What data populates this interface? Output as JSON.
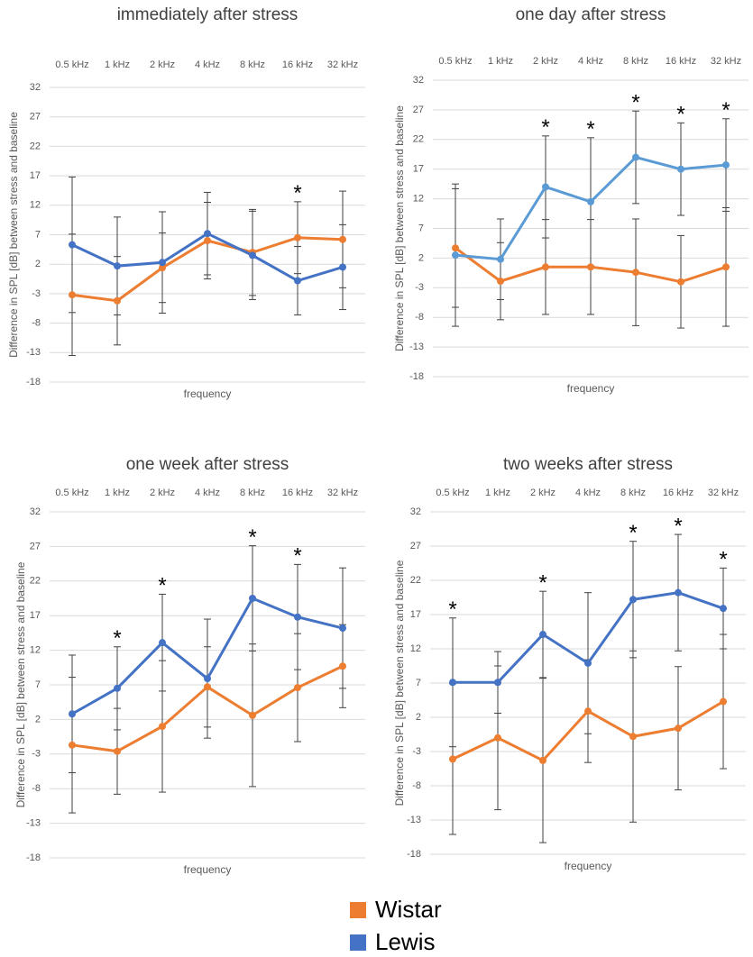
{
  "chart_data": [
    {
      "type": "line",
      "title": "immediately after stress",
      "categories": [
        "0.5 kHz",
        "1 kHz",
        "2 kHz",
        "4 kHz",
        "8 kHz",
        "16 kHz",
        "32 kHz"
      ],
      "x_label": "frequency",
      "y_label": "Difference in SPL [dB] between stress and baseline",
      "ylim": [
        -18,
        32
      ],
      "yticks": [
        -18,
        -13,
        -8,
        -3,
        2,
        7,
        12,
        17,
        22,
        27,
        32
      ],
      "grid": true,
      "series": [
        {
          "color": "#ed7d31",
          "values": [
            -3.2,
            -4.2,
            1.4,
            6.0,
            4.0,
            6.5,
            6.2
          ],
          "errors": [
            10.3,
            7.5,
            5.9,
            6.5,
            7.3,
            6.1,
            8.2
          ]
        },
        {
          "color": "#4472c4",
          "values": [
            5.3,
            1.7,
            2.3,
            7.2,
            3.5,
            -0.8,
            1.5
          ],
          "errors": [
            11.5,
            8.3,
            8.6,
            7.0,
            7.5,
            5.8,
            7.2
          ]
        }
      ],
      "annotations": [
        {
          "text": "*",
          "x": "16 kHz"
        }
      ]
    },
    {
      "type": "line",
      "title": "one day after stress",
      "categories": [
        "0.5 kHz",
        "1 kHz",
        "2 kHz",
        "4 kHz",
        "8 kHz",
        "16 kHz",
        "32 kHz"
      ],
      "x_label": "frequency",
      "y_label": "Difference in SPL [dB] between stress and baseline",
      "ylim": [
        -18,
        32
      ],
      "yticks": [
        -18,
        -13,
        -8,
        -3,
        2,
        7,
        12,
        17,
        22,
        27,
        32
      ],
      "grid": true,
      "series": [
        {
          "color": "#ed7d31",
          "values": [
            3.7,
            -1.9,
            0.5,
            0.5,
            -0.4,
            -2.0,
            0.5
          ],
          "errors": [
            10.0,
            6.5,
            8.0,
            8.0,
            9.0,
            7.8,
            10.0
          ]
        },
        {
          "color": "#5b9bd5",
          "values": [
            2.5,
            1.8,
            14.0,
            11.5,
            19.0,
            17.0,
            17.7
          ],
          "errors": [
            12.0,
            6.8,
            8.6,
            10.8,
            7.8,
            7.8,
            7.8
          ]
        }
      ],
      "annotations": [
        {
          "text": "*",
          "x": "2 kHz"
        },
        {
          "text": "*",
          "x": "4 kHz"
        },
        {
          "text": "*",
          "x": "8 kHz"
        },
        {
          "text": "*",
          "x": "16 kHz"
        },
        {
          "text": "*",
          "x": "32 kHz"
        }
      ]
    },
    {
      "type": "line",
      "title": "one week after stress",
      "categories": [
        "0.5 kHz",
        "1 kHz",
        "2 kHz",
        "4 kHz",
        "8 kHz",
        "16 kHz",
        "32 kHz"
      ],
      "x_label": "frequency",
      "y_label": "Difference in SPL [dB] between stress and baseline",
      "ylim": [
        -18,
        32
      ],
      "yticks": [
        -18,
        -13,
        -8,
        -3,
        2,
        7,
        12,
        17,
        22,
        27,
        32
      ],
      "grid": true,
      "series": [
        {
          "color": "#ed7d31",
          "values": [
            -1.7,
            -2.6,
            1.0,
            6.7,
            2.6,
            6.6,
            9.7
          ],
          "errors": [
            9.8,
            6.2,
            9.5,
            5.8,
            10.3,
            7.8,
            6.0
          ]
        },
        {
          "color": "#4472c4",
          "values": [
            2.8,
            6.5,
            13.1,
            7.9,
            19.5,
            16.8,
            15.2
          ],
          "errors": [
            8.5,
            6.0,
            7.0,
            8.6,
            7.6,
            7.6,
            8.7
          ]
        }
      ],
      "annotations": [
        {
          "text": "*",
          "x": "1 kHz"
        },
        {
          "text": "*",
          "x": "2 kHz"
        },
        {
          "text": "*",
          "x": "8 kHz"
        },
        {
          "text": "*",
          "x": "16 kHz"
        }
      ]
    },
    {
      "type": "line",
      "title": "two weeks after stress",
      "categories": [
        "0.5 kHz",
        "1 kHz",
        "2 kHz",
        "4 kHz",
        "8 kHz",
        "16 kHz",
        "32 kHz"
      ],
      "x_label": "frequency",
      "y_label": "Difference in SPL [dB] between stress and baseline",
      "ylim": [
        -18,
        32
      ],
      "yticks": [
        -18,
        -13,
        -8,
        -3,
        2,
        7,
        12,
        17,
        22,
        27,
        32
      ],
      "grid": true,
      "series": [
        {
          "color": "#ed7d31",
          "values": [
            -4.1,
            -1.0,
            -4.3,
            2.9,
            -0.8,
            0.4,
            4.3
          ],
          "errors": [
            11.0,
            10.5,
            12.0,
            7.5,
            12.5,
            9.0,
            9.8
          ]
        },
        {
          "color": "#4472c4",
          "values": [
            7.1,
            7.1,
            14.1,
            9.9,
            19.2,
            20.2,
            17.9
          ],
          "errors": [
            9.4,
            4.5,
            6.3,
            10.3,
            8.5,
            8.5,
            5.9
          ]
        }
      ],
      "annotations": [
        {
          "text": "*",
          "x": "0.5 kHz"
        },
        {
          "text": "*",
          "x": "2 kHz"
        },
        {
          "text": "*",
          "x": "8 kHz"
        },
        {
          "text": "*",
          "x": "16 kHz"
        },
        {
          "text": "*",
          "x": "32 kHz"
        }
      ]
    }
  ],
  "legend": [
    {
      "name": "Wistar",
      "color": "#ed7d31"
    },
    {
      "name": "Lewis",
      "color": "#4472c4"
    }
  ]
}
